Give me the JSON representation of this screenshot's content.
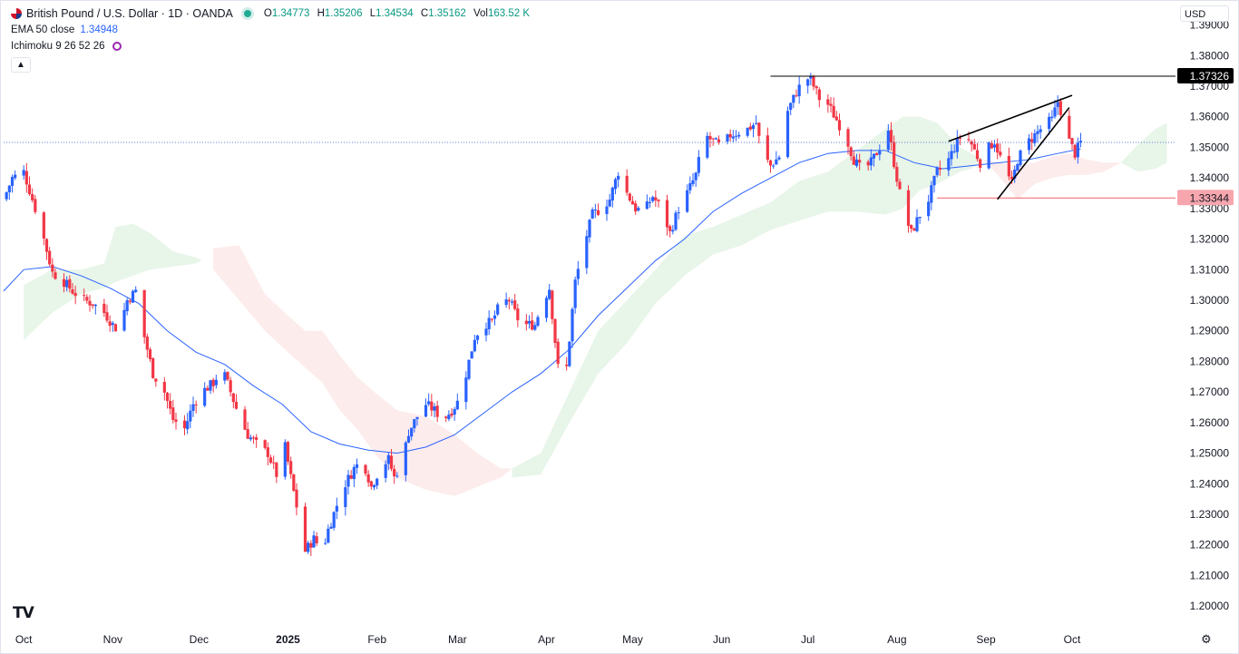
{
  "header": {
    "symbol_title": "British Pound / U.S. Dollar · 1D · OANDA",
    "ohlc": [
      {
        "key": "O",
        "value": "1.34773"
      },
      {
        "key": "H",
        "value": "1.35206"
      },
      {
        "key": "L",
        "value": "1.34534"
      },
      {
        "key": "C",
        "value": "1.35162"
      },
      {
        "key": "Vol",
        "value": "163.52 K"
      }
    ]
  },
  "indicators": {
    "ema_label": "EMA 50 close",
    "ema_value": "1.34948",
    "ichimoku_label": "Ichimoku 9 26 52 26"
  },
  "controls": {
    "currency": "USD",
    "collapse_icon": "chevron-up-icon",
    "logo": "TV",
    "settings_icon": "gear-icon"
  },
  "colors": {
    "up": "#2962ff",
    "down": "#f23645",
    "ema": "#2962ff",
    "cloud_bull": "#e8f5e9",
    "cloud_bear": "#fdecec",
    "accent_black": "#000000",
    "support": "#f23645"
  },
  "chart_data": {
    "type": "candlestick",
    "symbol": "GBPUSD",
    "timeframe": "1D",
    "y_range": [
      1.195,
      1.397
    ],
    "y_ticks": [
      "1.39000",
      "1.38000",
      "1.37000",
      "1.36000",
      "1.35000",
      "1.34000",
      "1.33000",
      "1.32000",
      "1.31000",
      "1.30000",
      "1.29000",
      "1.28000",
      "1.27000",
      "1.26000",
      "1.25000",
      "1.24000",
      "1.23000",
      "1.22000",
      "1.21000",
      "1.20000"
    ],
    "x_ticks": [
      {
        "label": "Oct",
        "day": 0
      },
      {
        "label": "Nov",
        "day": 31
      },
      {
        "label": "Dec",
        "day": 61
      },
      {
        "label": "2025",
        "day": 92,
        "bold": true
      },
      {
        "label": "Feb",
        "day": 123
      },
      {
        "label": "Mar",
        "day": 151
      },
      {
        "label": "Apr",
        "day": 182
      },
      {
        "label": "May",
        "day": 212
      },
      {
        "label": "Jun",
        "day": 243
      },
      {
        "label": "Jul",
        "day": 273
      },
      {
        "label": "Aug",
        "day": 304
      },
      {
        "label": "Sep",
        "day": 335
      },
      {
        "label": "Oct",
        "day": 365
      }
    ],
    "x_domain_days": [
      -7,
      401
    ],
    "price_path": [
      [
        -7,
        1.333
      ],
      [
        -4,
        1.34
      ],
      [
        0,
        1.342
      ],
      [
        4,
        1.33
      ],
      [
        7,
        1.32
      ],
      [
        10,
        1.309
      ],
      [
        14,
        1.306
      ],
      [
        17,
        1.303
      ],
      [
        21,
        1.3
      ],
      [
        24,
        1.299
      ],
      [
        28,
        1.296
      ],
      [
        31,
        1.292
      ],
      [
        33,
        1.29
      ],
      [
        36,
        1.3
      ],
      [
        39,
        1.303
      ],
      [
        42,
        1.288
      ],
      [
        45,
        1.276
      ],
      [
        49,
        1.27
      ],
      [
        52,
        1.261
      ],
      [
        56,
        1.258
      ],
      [
        59,
        1.266
      ],
      [
        62,
        1.27
      ],
      [
        66,
        1.273
      ],
      [
        69,
        1.278
      ],
      [
        72,
        1.27
      ],
      [
        75,
        1.262
      ],
      [
        78,
        1.256
      ],
      [
        82,
        1.252
      ],
      [
        85,
        1.25
      ],
      [
        88,
        1.243
      ],
      [
        91,
        1.252
      ],
      [
        93,
        1.242
      ],
      [
        96,
        1.228
      ],
      [
        98,
        1.218
      ],
      [
        101,
        1.222
      ],
      [
        104,
        1.218
      ],
      [
        106,
        1.225
      ],
      [
        109,
        1.233
      ],
      [
        112,
        1.24
      ],
      [
        115,
        1.245
      ],
      [
        118,
        1.248
      ],
      [
        121,
        1.239
      ],
      [
        124,
        1.245
      ],
      [
        127,
        1.248
      ],
      [
        129,
        1.242
      ],
      [
        132,
        1.248
      ],
      [
        134,
        1.257
      ],
      [
        137,
        1.262
      ],
      [
        140,
        1.266
      ],
      [
        143,
        1.264
      ],
      [
        146,
        1.261
      ],
      [
        149,
        1.264
      ],
      [
        152,
        1.268
      ],
      [
        155,
        1.28
      ],
      [
        157,
        1.288
      ],
      [
        160,
        1.292
      ],
      [
        163,
        1.293
      ],
      [
        166,
        1.299
      ],
      [
        169,
        1.3
      ],
      [
        172,
        1.294
      ],
      [
        175,
        1.292
      ],
      [
        178,
        1.292
      ],
      [
        180,
        1.298
      ],
      [
        183,
        1.304
      ],
      [
        186,
        1.278
      ],
      [
        189,
        1.278
      ],
      [
        192,
        1.306
      ],
      [
        195,
        1.318
      ],
      [
        198,
        1.328
      ],
      [
        201,
        1.33
      ],
      [
        204,
        1.333
      ],
      [
        207,
        1.342
      ],
      [
        210,
        1.335
      ],
      [
        213,
        1.33
      ],
      [
        216,
        1.329
      ],
      [
        219,
        1.334
      ],
      [
        222,
        1.33
      ],
      [
        225,
        1.322
      ],
      [
        228,
        1.33
      ],
      [
        231,
        1.335
      ],
      [
        234,
        1.341
      ],
      [
        237,
        1.354
      ],
      [
        240,
        1.352
      ],
      [
        243,
        1.35
      ],
      [
        246,
        1.354
      ],
      [
        249,
        1.355
      ],
      [
        252,
        1.356
      ],
      [
        255,
        1.358
      ],
      [
        257,
        1.348
      ],
      [
        260,
        1.344
      ],
      [
        263,
        1.347
      ],
      [
        266,
        1.362
      ],
      [
        269,
        1.368
      ],
      [
        272,
        1.373
      ],
      [
        274,
        1.372
      ],
      [
        277,
        1.366
      ],
      [
        280,
        1.364
      ],
      [
        283,
        1.359
      ],
      [
        286,
        1.354
      ],
      [
        289,
        1.346
      ],
      [
        292,
        1.342
      ],
      [
        295,
        1.345
      ],
      [
        298,
        1.35
      ],
      [
        301,
        1.356
      ],
      [
        303,
        1.345
      ],
      [
        306,
        1.33
      ],
      [
        309,
        1.322
      ],
      [
        312,
        1.328
      ],
      [
        315,
        1.333
      ],
      [
        318,
        1.342
      ],
      [
        321,
        1.344
      ],
      [
        324,
        1.35
      ],
      [
        327,
        1.355
      ],
      [
        330,
        1.351
      ],
      [
        333,
        1.345
      ],
      [
        336,
        1.35
      ],
      [
        338,
        1.352
      ],
      [
        341,
        1.344
      ],
      [
        344,
        1.338
      ],
      [
        346,
        1.346
      ],
      [
        349,
        1.351
      ],
      [
        352,
        1.354
      ],
      [
        355,
        1.357
      ],
      [
        358,
        1.359
      ],
      [
        360,
        1.365
      ],
      [
        362,
        1.359
      ],
      [
        364,
        1.352
      ],
      [
        366,
        1.348
      ],
      [
        368,
        1.3516
      ]
    ],
    "ema_path": [
      [
        -7,
        1.303
      ],
      [
        0,
        1.31
      ],
      [
        10,
        1.311
      ],
      [
        20,
        1.308
      ],
      [
        30,
        1.304
      ],
      [
        40,
        1.299
      ],
      [
        50,
        1.29
      ],
      [
        60,
        1.283
      ],
      [
        70,
        1.279
      ],
      [
        80,
        1.272
      ],
      [
        90,
        1.266
      ],
      [
        100,
        1.257
      ],
      [
        110,
        1.253
      ],
      [
        120,
        1.251
      ],
      [
        130,
        1.25
      ],
      [
        140,
        1.252
      ],
      [
        150,
        1.256
      ],
      [
        160,
        1.263
      ],
      [
        170,
        1.27
      ],
      [
        180,
        1.276
      ],
      [
        190,
        1.284
      ],
      [
        200,
        1.295
      ],
      [
        210,
        1.304
      ],
      [
        220,
        1.313
      ],
      [
        230,
        1.32
      ],
      [
        240,
        1.329
      ],
      [
        250,
        1.335
      ],
      [
        260,
        1.34
      ],
      [
        270,
        1.345
      ],
      [
        280,
        1.348
      ],
      [
        290,
        1.349
      ],
      [
        300,
        1.349
      ],
      [
        310,
        1.345
      ],
      [
        320,
        1.343
      ],
      [
        330,
        1.344
      ],
      [
        340,
        1.345
      ],
      [
        350,
        1.346
      ],
      [
        360,
        1.348
      ],
      [
        368,
        1.3495
      ]
    ],
    "cloud_bear_upper": [
      [
        66,
        1.317
      ],
      [
        75,
        1.318
      ],
      [
        84,
        1.302
      ],
      [
        92,
        1.295
      ],
      [
        98,
        1.29
      ],
      [
        104,
        1.29
      ],
      [
        110,
        1.282
      ],
      [
        116,
        1.275
      ],
      [
        122,
        1.27
      ],
      [
        130,
        1.264
      ],
      [
        140,
        1.262
      ],
      [
        150,
        1.256
      ],
      [
        158,
        1.25
      ],
      [
        166,
        1.245
      ],
      [
        170,
        1.245
      ]
    ],
    "cloud_bear_lower": [
      [
        66,
        1.31
      ],
      [
        75,
        1.3
      ],
      [
        84,
        1.29
      ],
      [
        92,
        1.283
      ],
      [
        98,
        1.278
      ],
      [
        104,
        1.273
      ],
      [
        110,
        1.264
      ],
      [
        116,
        1.258
      ],
      [
        122,
        1.25
      ],
      [
        130,
        1.242
      ],
      [
        140,
        1.238
      ],
      [
        150,
        1.236
      ],
      [
        158,
        1.239
      ],
      [
        166,
        1.242
      ],
      [
        170,
        1.245
      ]
    ],
    "cloud_bull_upper": [
      [
        0,
        1.305
      ],
      [
        10,
        1.31
      ],
      [
        20,
        1.31
      ],
      [
        28,
        1.312
      ],
      [
        32,
        1.324
      ],
      [
        38,
        1.325
      ],
      [
        44,
        1.322
      ],
      [
        52,
        1.316
      ],
      [
        60,
        1.314
      ],
      [
        62,
        1.313
      ]
    ],
    "cloud_bull_lower": [
      [
        0,
        1.287
      ],
      [
        10,
        1.296
      ],
      [
        20,
        1.302
      ],
      [
        28,
        1.304
      ],
      [
        32,
        1.306
      ],
      [
        38,
        1.308
      ],
      [
        44,
        1.31
      ],
      [
        52,
        1.311
      ],
      [
        60,
        1.312
      ],
      [
        62,
        1.313
      ]
    ],
    "cloud_bull2_upper": [
      [
        170,
        1.245
      ],
      [
        180,
        1.25
      ],
      [
        190,
        1.27
      ],
      [
        200,
        1.29
      ],
      [
        210,
        1.3
      ],
      [
        220,
        1.31
      ],
      [
        230,
        1.321
      ],
      [
        240,
        1.324
      ],
      [
        250,
        1.328
      ],
      [
        260,
        1.332
      ],
      [
        270,
        1.339
      ],
      [
        280,
        1.342
      ],
      [
        290,
        1.349
      ],
      [
        300,
        1.356
      ],
      [
        306,
        1.36
      ],
      [
        312,
        1.36
      ],
      [
        318,
        1.358
      ],
      [
        322,
        1.354
      ],
      [
        326,
        1.35
      ],
      [
        330,
        1.348
      ],
      [
        334,
        1.346
      ]
    ],
    "cloud_bull2_lower": [
      [
        170,
        1.242
      ],
      [
        180,
        1.243
      ],
      [
        190,
        1.26
      ],
      [
        200,
        1.276
      ],
      [
        210,
        1.286
      ],
      [
        220,
        1.299
      ],
      [
        230,
        1.308
      ],
      [
        240,
        1.315
      ],
      [
        250,
        1.318
      ],
      [
        260,
        1.323
      ],
      [
        270,
        1.326
      ],
      [
        280,
        1.329
      ],
      [
        290,
        1.329
      ],
      [
        300,
        1.328
      ],
      [
        306,
        1.33
      ],
      [
        312,
        1.336
      ],
      [
        318,
        1.338
      ],
      [
        322,
        1.34
      ],
      [
        326,
        1.342
      ],
      [
        330,
        1.343
      ],
      [
        334,
        1.346
      ]
    ],
    "cloud_bear2_upper": [
      [
        334,
        1.346
      ],
      [
        340,
        1.345
      ],
      [
        346,
        1.344
      ],
      [
        352,
        1.345
      ],
      [
        358,
        1.347
      ],
      [
        364,
        1.348
      ],
      [
        370,
        1.346
      ],
      [
        376,
        1.345
      ],
      [
        382,
        1.345
      ]
    ],
    "cloud_bear2_lower": [
      [
        334,
        1.346
      ],
      [
        340,
        1.34
      ],
      [
        346,
        1.333
      ],
      [
        352,
        1.338
      ],
      [
        358,
        1.34
      ],
      [
        364,
        1.341
      ],
      [
        370,
        1.341
      ],
      [
        376,
        1.342
      ],
      [
        382,
        1.345
      ]
    ],
    "cloud_bull3_upper": [
      [
        382,
        1.345
      ],
      [
        388,
        1.351
      ],
      [
        394,
        1.356
      ],
      [
        398,
        1.358
      ]
    ],
    "cloud_bull3_lower": [
      [
        382,
        1.345
      ],
      [
        388,
        1.342
      ],
      [
        394,
        1.343
      ],
      [
        398,
        1.345
      ]
    ],
    "lines": {
      "resistance": {
        "price": 1.37326,
        "from_day": 260,
        "label": "1.37326"
      },
      "support": {
        "price": 1.33344,
        "from_day": 318,
        "label": "1.33344"
      },
      "current_price_dotted": 1.3516,
      "wedge_upper": [
        [
          322,
          1.352
        ],
        [
          365,
          1.367
        ]
      ],
      "wedge_lower": [
        [
          339,
          1.333
        ],
        [
          364,
          1.363
        ]
      ]
    }
  }
}
